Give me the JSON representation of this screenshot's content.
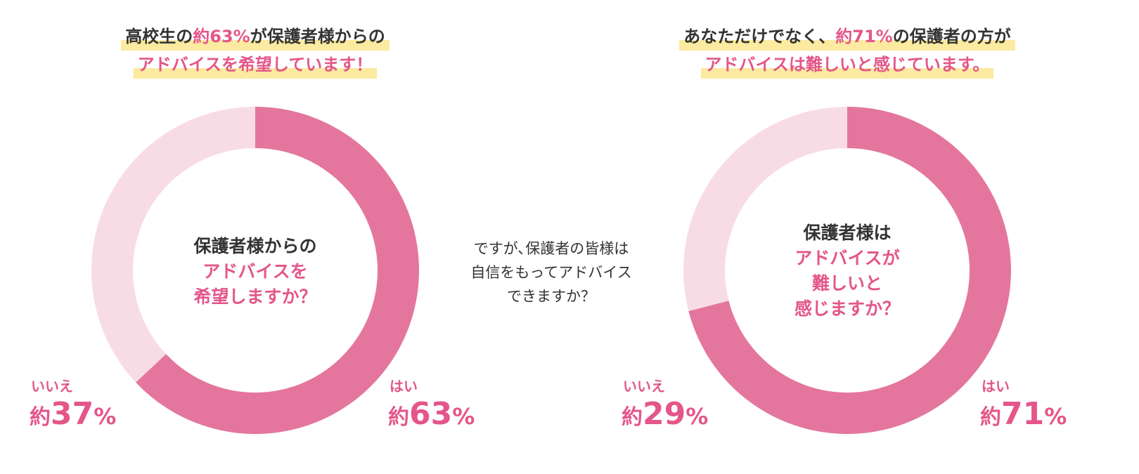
{
  "colors": {
    "yes": "#e4769d",
    "no": "#f8dce5",
    "accent": "#e4568a",
    "highlight": "#fbeaa0"
  },
  "chart_data": [
    {
      "type": "pie",
      "title": {
        "line1_a": "高校生の",
        "line1_b": "約63%",
        "line1_c": "が保護者様からの",
        "line2": "アドバイスを希望しています！"
      },
      "center": {
        "line1": "保護者様からの",
        "line2": "アドバイスを",
        "line3": "希望しますか？"
      },
      "slices": [
        {
          "label": "はい",
          "prefix": "約",
          "value": 63,
          "unit": "%"
        },
        {
          "label": "いいえ",
          "prefix": "約",
          "value": 37,
          "unit": "%"
        }
      ]
    },
    {
      "type": "pie",
      "title": {
        "line1_a": "あなただけでなく、",
        "line1_b": "約71%",
        "line1_c": "の保護者の方が",
        "line2": "アドバイスは難しいと感じています。"
      },
      "center": {
        "line1": "保護者様は",
        "line2": "アドバイスが",
        "line3": "難しいと",
        "line4": "感じますか？"
      },
      "slices": [
        {
          "label": "はい",
          "prefix": "約",
          "value": 71,
          "unit": "%"
        },
        {
          "label": "いいえ",
          "prefix": "約",
          "value": 29,
          "unit": "%"
        }
      ]
    }
  ],
  "middle": {
    "line1": "ですが､保護者の皆様は",
    "line2": "自信をもってアドバイス",
    "line3": "できますか？"
  }
}
